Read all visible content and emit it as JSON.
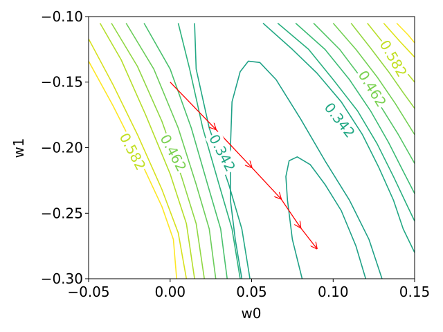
{
  "chart_data": {
    "type": "line",
    "subtype": "contour",
    "title": "",
    "xlabel": "w0",
    "ylabel": "w1",
    "xlim": [
      -0.05,
      0.15
    ],
    "ylim": [
      -0.3,
      -0.1
    ],
    "x_ticks": [
      "−0.05",
      "0.00",
      "0.05",
      "0.10",
      "0.15"
    ],
    "y_ticks": [
      "−0.10",
      "−0.15",
      "−0.20",
      "−0.25",
      "−0.30"
    ],
    "grid": false,
    "contour_labels": [
      {
        "text": "0.582",
        "color": "#c2df23",
        "x": -0.023,
        "y": -0.203,
        "angle": 62
      },
      {
        "text": "0.462",
        "color": "#7ad151",
        "x": 0.002,
        "y": -0.204,
        "angle": 62
      },
      {
        "text": "0.342",
        "color": "#22a884",
        "x": 0.032,
        "y": -0.204,
        "angle": 62
      },
      {
        "text": "0.342",
        "color": "#22a884",
        "x": 0.104,
        "y": -0.179,
        "angle": 52
      },
      {
        "text": "0.462",
        "color": "#7ad151",
        "x": 0.124,
        "y": -0.155,
        "angle": 58
      },
      {
        "text": "0.582",
        "color": "#c2df23",
        "x": 0.137,
        "y": -0.132,
        "angle": 60
      }
    ],
    "contours": [
      {
        "color": "#fde725",
        "points": [
          [
            -0.05,
            -0.134
          ],
          [
            -0.035,
            -0.168
          ],
          [
            -0.02,
            -0.205
          ],
          [
            -0.005,
            -0.245
          ],
          [
            0.002,
            -0.27
          ],
          [
            0.004,
            -0.3
          ]
        ]
      },
      {
        "color": "#d7e11e",
        "points": [
          [
            -0.05,
            -0.117
          ],
          [
            -0.035,
            -0.152
          ],
          [
            -0.02,
            -0.19
          ],
          [
            -0.005,
            -0.232
          ],
          [
            0.005,
            -0.265
          ],
          [
            0.01,
            -0.3
          ]
        ]
      },
      {
        "color": "#b5de2b",
        "points": [
          [
            -0.043,
            -0.105
          ],
          [
            -0.03,
            -0.133
          ],
          [
            -0.015,
            -0.175
          ],
          [
            0.0,
            -0.22
          ],
          [
            0.01,
            -0.258
          ],
          [
            0.015,
            -0.3
          ]
        ]
      },
      {
        "color": "#90d743",
        "points": [
          [
            -0.036,
            -0.105
          ],
          [
            -0.02,
            -0.138
          ],
          [
            -0.005,
            -0.18
          ],
          [
            0.007,
            -0.222
          ],
          [
            0.016,
            -0.258
          ],
          [
            0.021,
            -0.3
          ]
        ]
      },
      {
        "color": "#6ccd5a",
        "points": [
          [
            -0.027,
            -0.105
          ],
          [
            -0.01,
            -0.14
          ],
          [
            0.005,
            -0.185
          ],
          [
            0.016,
            -0.228
          ],
          [
            0.024,
            -0.262
          ],
          [
            0.028,
            -0.3
          ]
        ]
      },
      {
        "color": "#4ac16d",
        "points": [
          [
            -0.016,
            -0.105
          ],
          [
            0.0,
            -0.14
          ],
          [
            0.013,
            -0.185
          ],
          [
            0.023,
            -0.228
          ],
          [
            0.031,
            -0.262
          ],
          [
            0.035,
            -0.3
          ]
        ]
      },
      {
        "color": "#2db27d",
        "points": [
          [
            0.005,
            -0.105
          ],
          [
            0.012,
            -0.14
          ],
          [
            0.02,
            -0.185
          ],
          [
            0.03,
            -0.228
          ],
          [
            0.038,
            -0.262
          ],
          [
            0.043,
            -0.3
          ]
        ]
      },
      {
        "color": "#22a884",
        "points": [
          [
            0.015,
            -0.105
          ],
          [
            0.016,
            -0.14
          ],
          [
            0.024,
            -0.185
          ],
          [
            0.036,
            -0.228
          ],
          [
            0.044,
            -0.262
          ],
          [
            0.049,
            -0.3
          ]
        ]
      },
      {
        "color": "#1fa187",
        "points": [
          [
            0.044,
            -0.3
          ],
          [
            0.04,
            -0.27
          ],
          [
            0.037,
            -0.24
          ],
          [
            0.037,
            -0.2
          ],
          [
            0.038,
            -0.165
          ],
          [
            0.043,
            -0.142
          ],
          [
            0.048,
            -0.134
          ],
          [
            0.055,
            -0.135
          ],
          [
            0.065,
            -0.148
          ],
          [
            0.08,
            -0.178
          ],
          [
            0.095,
            -0.21
          ],
          [
            0.11,
            -0.24
          ],
          [
            0.122,
            -0.27
          ],
          [
            0.13,
            -0.3
          ]
        ]
      },
      {
        "color": "#1fa187",
        "points": [
          [
            0.081,
            -0.3
          ],
          [
            0.075,
            -0.27
          ],
          [
            0.072,
            -0.24
          ],
          [
            0.071,
            -0.222
          ],
          [
            0.073,
            -0.21
          ],
          [
            0.078,
            -0.207
          ],
          [
            0.086,
            -0.213
          ],
          [
            0.095,
            -0.228
          ],
          [
            0.105,
            -0.248
          ],
          [
            0.114,
            -0.275
          ],
          [
            0.12,
            -0.3
          ]
        ]
      },
      {
        "color": "#22a884",
        "points": [
          [
            0.057,
            -0.105
          ],
          [
            0.075,
            -0.125
          ],
          [
            0.09,
            -0.143
          ],
          [
            0.105,
            -0.165
          ],
          [
            0.118,
            -0.19
          ],
          [
            0.128,
            -0.215
          ],
          [
            0.137,
            -0.24
          ],
          [
            0.143,
            -0.262
          ],
          [
            0.15,
            -0.28
          ]
        ]
      },
      {
        "color": "#29af7f",
        "points": [
          [
            0.066,
            -0.105
          ],
          [
            0.085,
            -0.125
          ],
          [
            0.1,
            -0.148
          ],
          [
            0.115,
            -0.172
          ],
          [
            0.127,
            -0.197
          ],
          [
            0.137,
            -0.222
          ],
          [
            0.145,
            -0.243
          ],
          [
            0.15,
            -0.256
          ]
        ]
      },
      {
        "color": "#3bbb75",
        "points": [
          [
            0.077,
            -0.105
          ],
          [
            0.095,
            -0.125
          ],
          [
            0.11,
            -0.148
          ],
          [
            0.123,
            -0.172
          ],
          [
            0.134,
            -0.196
          ],
          [
            0.143,
            -0.218
          ],
          [
            0.15,
            -0.235
          ]
        ]
      },
      {
        "color": "#55c667",
        "points": [
          [
            0.088,
            -0.105
          ],
          [
            0.104,
            -0.125
          ],
          [
            0.118,
            -0.148
          ],
          [
            0.13,
            -0.17
          ],
          [
            0.14,
            -0.19
          ],
          [
            0.15,
            -0.212
          ]
        ]
      },
      {
        "color": "#73d055",
        "points": [
          [
            0.1,
            -0.105
          ],
          [
            0.114,
            -0.125
          ],
          [
            0.127,
            -0.146
          ],
          [
            0.138,
            -0.166
          ],
          [
            0.15,
            -0.19
          ]
        ]
      },
      {
        "color": "#93d741",
        "points": [
          [
            0.111,
            -0.105
          ],
          [
            0.123,
            -0.124
          ],
          [
            0.134,
            -0.142
          ],
          [
            0.143,
            -0.158
          ],
          [
            0.15,
            -0.17
          ]
        ]
      },
      {
        "color": "#b8de29",
        "points": [
          [
            0.121,
            -0.105
          ],
          [
            0.132,
            -0.122
          ],
          [
            0.142,
            -0.138
          ],
          [
            0.15,
            -0.15
          ]
        ]
      },
      {
        "color": "#dde318",
        "points": [
          [
            0.131,
            -0.105
          ],
          [
            0.141,
            -0.119
          ],
          [
            0.15,
            -0.131
          ]
        ]
      },
      {
        "color": "#fde725",
        "points": [
          [
            0.139,
            -0.105
          ],
          [
            0.146,
            -0.114
          ],
          [
            0.15,
            -0.12
          ]
        ]
      }
    ],
    "series": [
      {
        "type": "arrows",
        "color": "#ff0000",
        "points": [
          [
            0.0,
            -0.15
          ],
          [
            0.028,
            -0.186
          ],
          [
            0.05,
            -0.215
          ],
          [
            0.068,
            -0.239
          ],
          [
            0.08,
            -0.261
          ],
          [
            0.09,
            -0.277
          ]
        ]
      }
    ]
  }
}
